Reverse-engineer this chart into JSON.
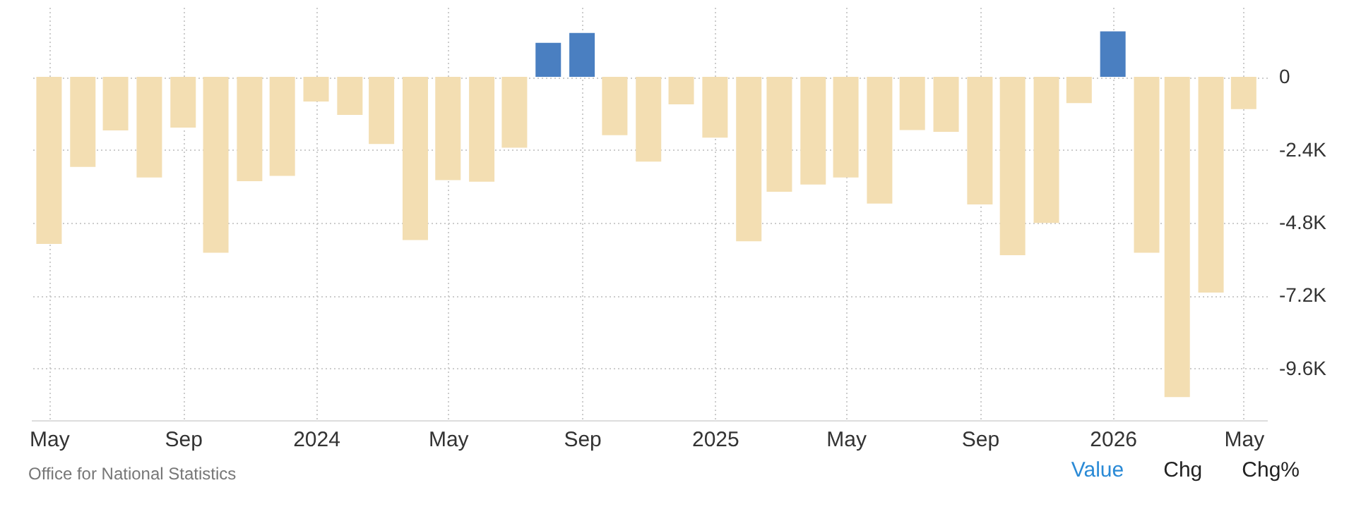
{
  "chart_data": {
    "type": "bar",
    "x": [
      "2023-05",
      "2023-06",
      "2023-07",
      "2023-08",
      "2023-09",
      "2023-10",
      "2023-11",
      "2023-12",
      "2024-01",
      "2024-02",
      "2024-03",
      "2024-04",
      "2024-05",
      "2024-06",
      "2024-07",
      "2024-08",
      "2024-09",
      "2024-10",
      "2024-11",
      "2024-12",
      "2025-01",
      "2025-02",
      "2025-03",
      "2025-04",
      "2025-05",
      "2025-06",
      "2025-07",
      "2025-08",
      "2025-09",
      "2025-10",
      "2025-11",
      "2025-12",
      "2026-01",
      "2026-02",
      "2026-03",
      "2026-04",
      "2026-05"
    ],
    "values": [
      -5500,
      -2960,
      -1760,
      -3310,
      -1670,
      -5790,
      -3430,
      -3260,
      -810,
      -1250,
      -2210,
      -5370,
      -3400,
      -3450,
      -2330,
      1120,
      1450,
      -1920,
      -2790,
      -900,
      -2000,
      -5410,
      -3780,
      -3540,
      -3310,
      -4170,
      -1750,
      -1810,
      -4200,
      -5870,
      -4810,
      -860,
      1500,
      -5790,
      -10540,
      -7100,
      -1060
    ],
    "colors": [
      "#f3deb2",
      "#f3deb2",
      "#f3deb2",
      "#f3deb2",
      "#f3deb2",
      "#f3deb2",
      "#f3deb2",
      "#f3deb2",
      "#f3deb2",
      "#f3deb2",
      "#f3deb2",
      "#f3deb2",
      "#f3deb2",
      "#f3deb2",
      "#f3deb2",
      "#4a7fc1",
      "#4a7fc1",
      "#f3deb2",
      "#f3deb2",
      "#f3deb2",
      "#f3deb2",
      "#f3deb2",
      "#f3deb2",
      "#f3deb2",
      "#f3deb2",
      "#f3deb2",
      "#f3deb2",
      "#f3deb2",
      "#f3deb2",
      "#f3deb2",
      "#f3deb2",
      "#f3deb2",
      "#4a7fc1",
      "#f3deb2",
      "#f3deb2",
      "#f3deb2",
      "#f3deb2"
    ],
    "xticks": [
      {
        "value": "2023-05",
        "label": "May"
      },
      {
        "value": "2023-09",
        "label": "Sep"
      },
      {
        "value": "2024-01",
        "label": "2024"
      },
      {
        "value": "2024-05",
        "label": "May"
      },
      {
        "value": "2024-09",
        "label": "Sep"
      },
      {
        "value": "2025-01",
        "label": "2025"
      },
      {
        "value": "2025-05",
        "label": "May"
      },
      {
        "value": "2025-09",
        "label": "Sep"
      },
      {
        "value": "2026-01",
        "label": "2026"
      },
      {
        "value": "2026-05",
        "label": "May"
      }
    ],
    "xlim": [
      "2023-04-21",
      "2026-05-16"
    ],
    "ylim": [
      -11300,
      2300
    ],
    "yticks": [
      {
        "value": 0,
        "label": "0"
      },
      {
        "value": -2400,
        "label": "-2.4K"
      },
      {
        "value": -4800,
        "label": "-4.8K"
      },
      {
        "value": -7200,
        "label": "-7.2K"
      },
      {
        "value": -9600,
        "label": "-9.6K"
      }
    ],
    "grid": true,
    "annotations": [
      "Office for National Statistics",
      "Value",
      "Chg",
      "Chg%"
    ]
  }
}
